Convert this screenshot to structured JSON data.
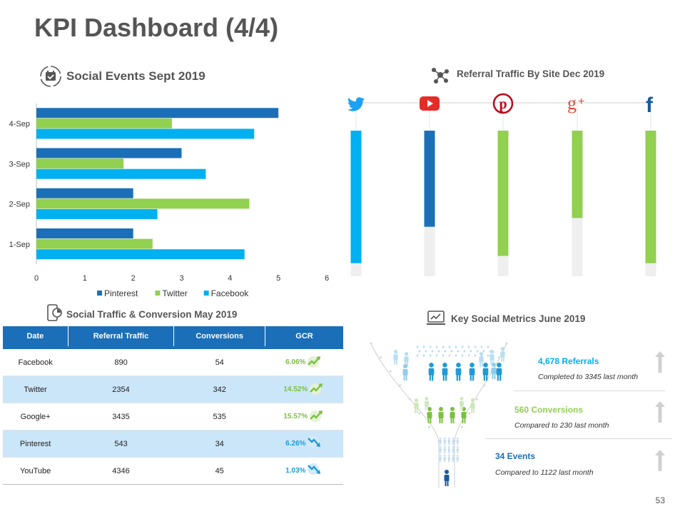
{
  "title": "KPI Dashboard (4/4)",
  "page_number": "53",
  "sections": {
    "social_events": "Social Events Sept 2019",
    "referral_traffic": "Referral Traffic By Site Dec 2019",
    "social_traffic": "Social Traffic & Conversion May 2019",
    "key_metrics": "Key Social Metrics June 2019"
  },
  "colors": {
    "pinterest": "#1B6FB8",
    "twitter": "#92D050",
    "facebook": "#00B0F0",
    "table_header": "#1B6FB8",
    "table_alt": "#CCE6F9"
  },
  "chart_data": [
    {
      "type": "bar",
      "orientation": "horizontal",
      "title": "Social Events Sept 2019",
      "categories": [
        "1-Sep",
        "2-Sep",
        "3-Sep",
        "4-Sep"
      ],
      "series": [
        {
          "name": "Pinterest",
          "color": "#1B6FB8",
          "values": [
            2,
            2,
            3,
            5
          ]
        },
        {
          "name": "Twitter",
          "color": "#92D050",
          "values": [
            2.4,
            4.4,
            1.8,
            2.8
          ]
        },
        {
          "name": "Facebook",
          "color": "#00B0F0",
          "values": [
            4.3,
            2.5,
            3.5,
            4.5
          ]
        }
      ],
      "xlim": [
        0,
        6
      ],
      "xticks": [
        "0",
        "1",
        "2",
        "3",
        "4",
        "5",
        "6"
      ],
      "legend": "bottom",
      "grid": false
    },
    {
      "type": "bar",
      "orientation": "vertical",
      "title": "Referral Traffic By Site Dec 2019",
      "categories": [
        "Twitter",
        "YouTube",
        "Pinterest",
        "Google+",
        "Facebook"
      ],
      "icons": [
        "twitter-icon",
        "youtube-icon",
        "pinterest-icon",
        "google-plus-icon",
        "facebook-icon"
      ],
      "values_fraction": [
        0.91,
        0.66,
        0.86,
        0.6,
        0.91
      ],
      "colors": [
        "#00B0F0",
        "#1B6FB8",
        "#92D050",
        "#92D050",
        "#92D050"
      ]
    }
  ],
  "table": {
    "headers": [
      "Date",
      "Referral Traffic",
      "Conversions",
      "GCR"
    ],
    "rows": [
      {
        "date": "Facebook",
        "referral": "890",
        "conversions": "54",
        "gcr": "6.06%",
        "trend": "up"
      },
      {
        "date": "Twitter",
        "referral": "2354",
        "conversions": "342",
        "gcr": "14.52%",
        "trend": "up"
      },
      {
        "date": "Google+",
        "referral": "3435",
        "conversions": "535",
        "gcr": "15.57%",
        "trend": "up"
      },
      {
        "date": "Pinterest",
        "referral": "543",
        "conversions": "34",
        "gcr": "6.26%",
        "trend": "down"
      },
      {
        "date": "YouTube",
        "referral": "4346",
        "conversions": "45",
        "gcr": "1.03%",
        "trend": "down"
      }
    ]
  },
  "metrics": [
    {
      "title": "4,678 Referrals",
      "subtitle": "Completed to 3345 last month",
      "color": "#00B0F0"
    },
    {
      "title": "560 Conversions",
      "subtitle": "Compared to 230 last month",
      "color": "#92D050"
    },
    {
      "title": "34 Events",
      "subtitle": "Compared to 1122 last month",
      "color": "#1B6FB8"
    }
  ]
}
